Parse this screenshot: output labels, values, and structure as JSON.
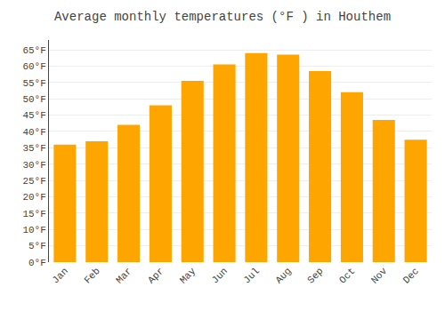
{
  "chart_data": {
    "type": "bar",
    "title": "Average monthly temperatures (°F ) in Houthem",
    "categories": [
      "Jan",
      "Feb",
      "Mar",
      "Apr",
      "May",
      "Jun",
      "Jul",
      "Aug",
      "Sep",
      "Oct",
      "Nov",
      "Dec"
    ],
    "values": [
      36,
      37,
      42,
      48,
      55.5,
      60.5,
      64,
      63.5,
      58.5,
      52,
      43.5,
      37.5
    ],
    "color": "#FFA500",
    "ylim": [
      0,
      68
    ],
    "yticks": [
      {
        "value": 0,
        "label": "0°F"
      },
      {
        "value": 5,
        "label": "5°F"
      },
      {
        "value": 10,
        "label": "10°F"
      },
      {
        "value": 15,
        "label": "15°F"
      },
      {
        "value": 20,
        "label": "20°F"
      },
      {
        "value": 25,
        "label": "25°F"
      },
      {
        "value": 30,
        "label": "30°F"
      },
      {
        "value": 35,
        "label": "35°F"
      },
      {
        "value": 40,
        "label": "40°F"
      },
      {
        "value": 45,
        "label": "45°F"
      },
      {
        "value": 50,
        "label": "50°F"
      },
      {
        "value": 55,
        "label": "55°F"
      },
      {
        "value": 60,
        "label": "60°F"
      },
      {
        "value": 65,
        "label": "65°F"
      }
    ],
    "grid": true
  }
}
